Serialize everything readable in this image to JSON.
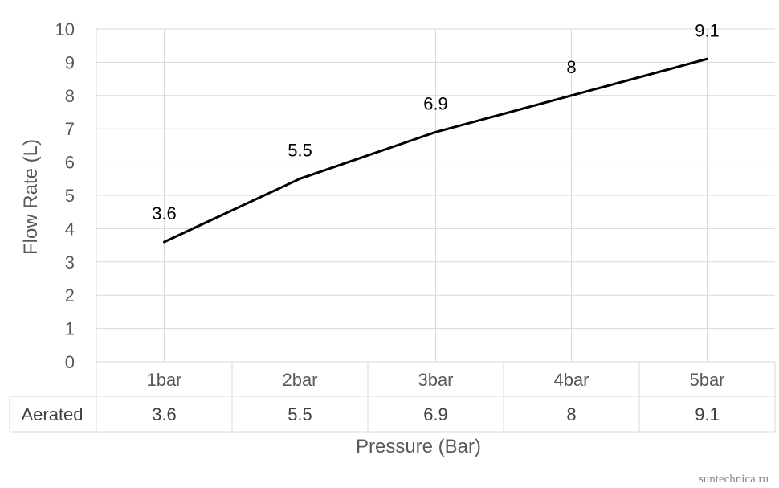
{
  "chart_data": {
    "type": "line",
    "categories": [
      "1bar",
      "2bar",
      "3bar",
      "4bar",
      "5bar"
    ],
    "series": [
      {
        "name": "Aerated",
        "values": [
          3.6,
          5.5,
          6.9,
          8,
          9.1
        ],
        "color": "#000000"
      }
    ],
    "xlabel": "Pressure (Bar)",
    "ylabel": "Flow Rate (L)",
    "ylim": [
      0,
      10
    ],
    "yticks": [
      "0",
      "1",
      "2",
      "3",
      "4",
      "5",
      "6",
      "7",
      "8",
      "9",
      "10"
    ],
    "data_labels": [
      "3.6",
      "5.5",
      "6.9",
      "8",
      "9.1"
    ],
    "data_table": {
      "row_label": "Aerated",
      "values": [
        "3.6",
        "5.5",
        "6.9",
        "8",
        "9.1"
      ]
    },
    "grid": true,
    "legend": "none"
  },
  "watermark": "suntechnica.ru",
  "colors": {
    "grid": "#d9d9d9",
    "line": "#000000",
    "text": "#595959"
  }
}
